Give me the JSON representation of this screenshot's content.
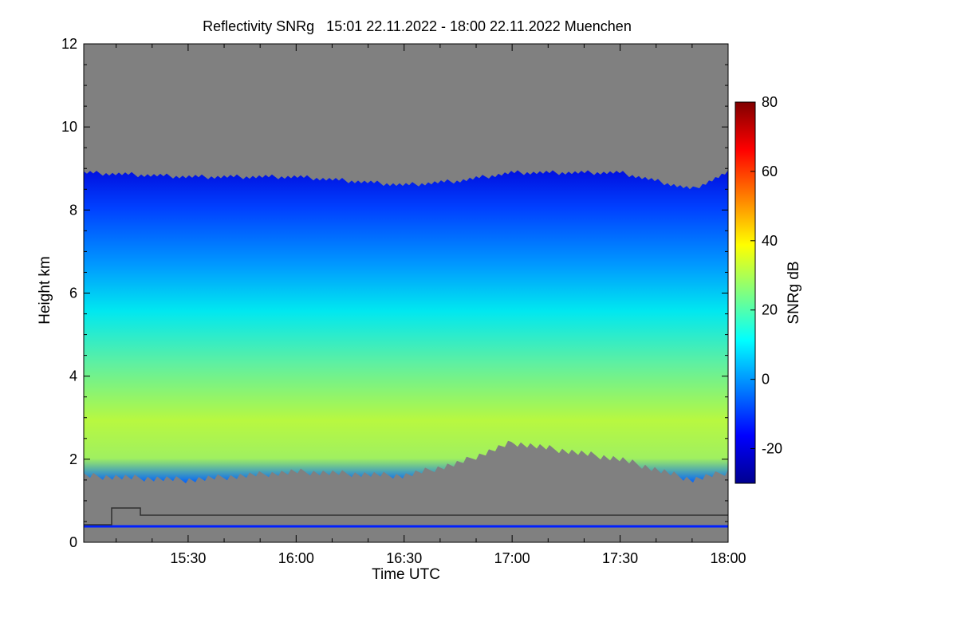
{
  "chart_data": {
    "type": "heatmap",
    "title": "Reflectivity SNRg   15:01 22.11.2022 - 18:00 22.11.2022 Muenchen",
    "xlabel": "Time UTC",
    "ylabel": "Height km",
    "x_range": [
      "15:01",
      "18:00"
    ],
    "x_tick_labels": [
      "15:30",
      "16:00",
      "16:30",
      "17:00",
      "17:30",
      "18:00"
    ],
    "ylim": [
      0,
      12
    ],
    "y_tick_labels": [
      "0",
      "2",
      "4",
      "6",
      "8",
      "10",
      "12"
    ],
    "colorbar": {
      "label": "SNRg dB",
      "range": [
        -30,
        80
      ],
      "tick_labels": [
        "-20",
        "0",
        "20",
        "40",
        "60",
        "80"
      ],
      "colors": [
        "#00008f",
        "#0000ff",
        "#0080ff",
        "#00ffff",
        "#80ff80",
        "#ffff00",
        "#ff8000",
        "#ff0000",
        "#800000"
      ]
    },
    "background_color": "#808080",
    "echo_layer": {
      "time": [
        "15:01",
        "15:30",
        "16:00",
        "16:30",
        "16:45",
        "17:00",
        "17:30",
        "17:50",
        "18:00"
      ],
      "cloud_top_km": [
        8.9,
        8.8,
        8.8,
        8.6,
        8.7,
        8.9,
        8.9,
        8.5,
        8.9
      ],
      "cloud_base_km": [
        1.6,
        1.5,
        1.7,
        1.6,
        1.9,
        2.4,
        2.0,
        1.5,
        1.7
      ],
      "peak_snr_db": [
        30,
        32,
        32,
        28,
        25,
        24,
        22,
        24,
        26
      ]
    }
  }
}
